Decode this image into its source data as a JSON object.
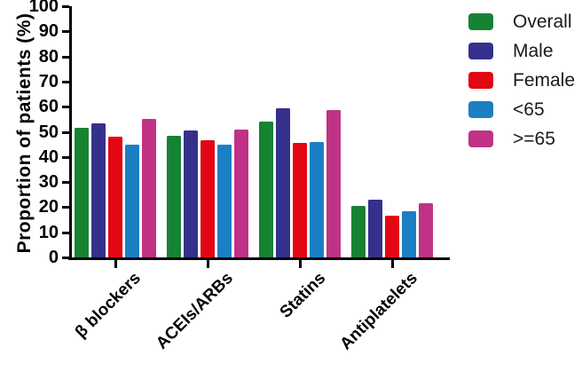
{
  "figure": {
    "y_axis_title": "Proportion of patients (%)"
  },
  "chart_data": {
    "type": "bar",
    "title": "",
    "xlabel": "",
    "ylabel": "Proportion of patients (%)",
    "ylim": [
      0,
      100
    ],
    "yticks": [
      0,
      10,
      20,
      30,
      40,
      50,
      60,
      70,
      80,
      90,
      100
    ],
    "grid": false,
    "legend_position": "top-right",
    "categories": [
      "β blockers",
      "ACEIs/ARBs",
      "Statins",
      "Antiplatelets"
    ],
    "series": [
      {
        "name": "Overall",
        "color": "#168333",
        "values": [
          51.5,
          48.5,
          54.0,
          20.5
        ]
      },
      {
        "name": "Male",
        "color": "#35308c",
        "values": [
          53.5,
          50.5,
          59.5,
          23.0
        ]
      },
      {
        "name": "Female",
        "color": "#e30613",
        "values": [
          48.0,
          46.5,
          45.5,
          16.5
        ]
      },
      {
        "name": "<65",
        "color": "#1b7fc4",
        "values": [
          45.0,
          45.0,
          46.0,
          18.5
        ]
      },
      {
        "name": ">=65",
        "color": "#bf3286",
        "values": [
          55.0,
          51.0,
          58.5,
          21.5
        ]
      }
    ]
  }
}
